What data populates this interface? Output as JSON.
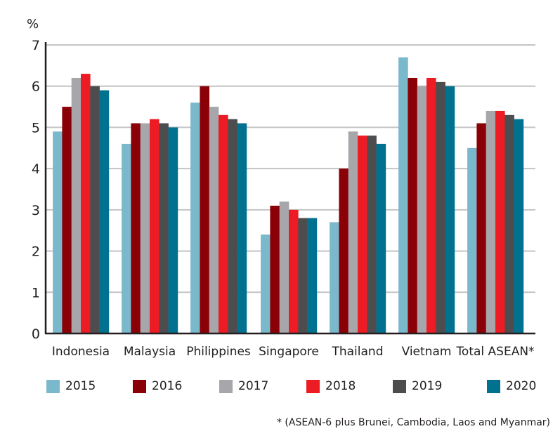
{
  "chart_data": {
    "type": "bar",
    "title": "",
    "xlabel": "",
    "ylabel": "%",
    "ylim": [
      0,
      7
    ],
    "yticks": [
      0,
      1,
      2,
      3,
      4,
      5,
      6,
      7
    ],
    "grid": true,
    "legend_position": "bottom",
    "categories": [
      "Indonesia",
      "Malaysia",
      "Philippines",
      "Singapore",
      "Thailand",
      "Vietnam",
      "Total ASEAN*"
    ],
    "series": [
      {
        "name": "2015",
        "color": "#7ab8cc",
        "values": [
          4.9,
          4.6,
          5.6,
          2.4,
          2.7,
          6.7,
          4.5
        ]
      },
      {
        "name": "2016",
        "color": "#8b0007",
        "values": [
          5.5,
          5.1,
          6.0,
          3.1,
          4.0,
          6.2,
          5.1
        ]
      },
      {
        "name": "2017",
        "color": "#a7a7ab",
        "values": [
          6.2,
          5.1,
          5.5,
          3.2,
          4.9,
          6.0,
          5.4
        ]
      },
      {
        "name": "2018",
        "color": "#ed1c24",
        "values": [
          6.3,
          5.2,
          5.3,
          3.0,
          4.8,
          6.2,
          5.4
        ]
      },
      {
        "name": "2019",
        "color": "#4d4d4f",
        "values": [
          6.0,
          5.1,
          5.2,
          2.8,
          4.8,
          6.1,
          5.3
        ]
      },
      {
        "name": "2020",
        "color": "#00718f",
        "values": [
          5.9,
          5.0,
          5.1,
          2.8,
          4.6,
          6.0,
          5.2
        ]
      }
    ],
    "footnote": "* (ASEAN-6 plus Brunei, Cambodia, Laos and Myanmar)"
  }
}
